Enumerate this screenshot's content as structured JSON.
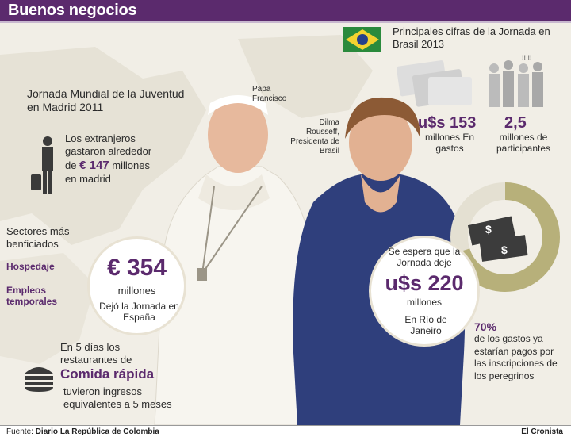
{
  "header": {
    "title": "Buenos negocios"
  },
  "madrid": {
    "title": "Jornada Mundial de la Juventud en Madrid 2011",
    "spend_text_a": "Los extranjeros gastaron alrededor de",
    "spend_value": "€ 147",
    "spend_text_b": "millones en madrid",
    "sectors_title": "Sectores más benficiados",
    "sector_1": "Hospedaje",
    "sector_2": "Empleos temporales",
    "circle_value": "€ 354",
    "circle_unit": "millones",
    "circle_caption": "Dejó la Jornada en España",
    "food_text_a": "En 5 días los restaurantes de",
    "food_highlight": "Comida rápida",
    "food_text_b": "tuvieron ingresos equivalentes a 5 meses"
  },
  "people": {
    "pope": "Papa Francisco",
    "dilma": "Dilma Rousseff, Presidenta de Brasil"
  },
  "brazil": {
    "title": "Principales cifras de la Jornada en Brasil 2013",
    "spend_value": "u$s 153",
    "spend_caption": "millones En gastos",
    "participants_value": "2,5",
    "participants_caption": "millones de participantes",
    "expected_text": "Se espera que la Jornada deje",
    "expected_value": "u$s 220",
    "expected_unit": "millones",
    "expected_place": "En Río de Janeiro",
    "paid_value": "70%",
    "paid_caption": "de los gastos ya estarían pagos por las inscripciones de los peregrinos"
  },
  "footer": {
    "source_label": "Fuente:",
    "source_value": "Diario La República de Colombia",
    "brand": "El Cronista"
  },
  "colors": {
    "purple": "#5b2a6d",
    "olive": "#b7b07a",
    "bg": "#f1eee6"
  }
}
